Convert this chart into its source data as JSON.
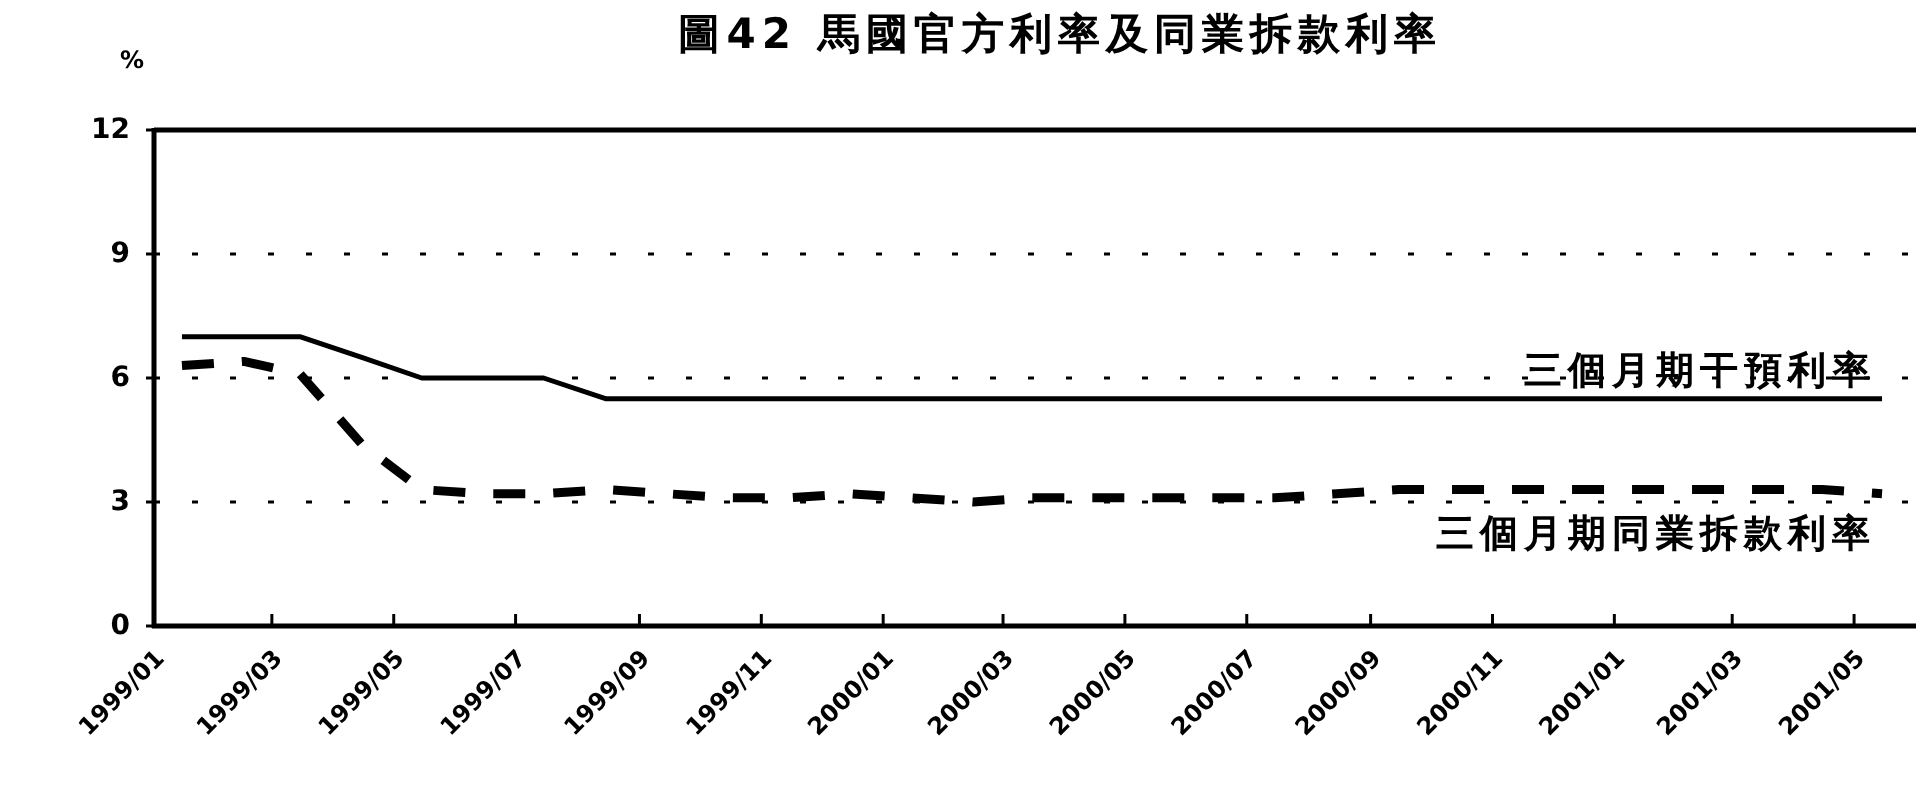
{
  "chart_data": {
    "type": "line",
    "title": "圖42  馬國官方利率及同業拆款利率",
    "ylabel": "%",
    "x": [
      "1999-01-15",
      "1999-02-15",
      "1999-03-15",
      "1999-04-15",
      "1999-05-15",
      "1999-06-15",
      "1999-07-15",
      "1999-08-15",
      "1999-09-15",
      "1999-10-15",
      "1999-11-15",
      "1999-12-15",
      "2000-01-15",
      "2000-02-15",
      "2000-03-15",
      "2000-04-15",
      "2000-05-15",
      "2000-06-15",
      "2000-07-15",
      "2000-08-15",
      "2000-09-15",
      "2000-10-15",
      "2000-11-15",
      "2000-12-15",
      "2001-01-15",
      "2001-02-15",
      "2001-03-15",
      "2001-04-15",
      "2001-05-15"
    ],
    "series": [
      {
        "name": "三個月期干預利率",
        "color": "#000000",
        "line_style": "solid",
        "values": [
          7.0,
          7.0,
          7.0,
          6.5,
          6.0,
          6.0,
          6.0,
          5.5,
          5.5,
          5.5,
          5.5,
          5.5,
          5.5,
          5.5,
          5.5,
          5.5,
          5.5,
          5.5,
          5.5,
          5.5,
          5.5,
          5.5,
          5.5,
          5.5,
          5.5,
          5.5,
          5.5,
          5.5,
          5.5
        ]
      },
      {
        "name": "三個月期同業拆款利率",
        "color": "#000000",
        "line_style": "dashed",
        "values": [
          6.3,
          6.4,
          6.1,
          4.4,
          3.3,
          3.2,
          3.2,
          3.3,
          3.2,
          3.1,
          3.1,
          3.2,
          3.1,
          3.0,
          3.1,
          3.1,
          3.1,
          3.1,
          3.1,
          3.2,
          3.3,
          3.3,
          3.3,
          3.3,
          3.3,
          3.3,
          3.3,
          3.3,
          3.2
        ]
      }
    ],
    "xlim": [
      "1999-01-01",
      "2001-06-01"
    ],
    "xticks": [
      {
        "value": "1999-01",
        "label": "1999/01"
      },
      {
        "value": "1999-03",
        "label": "1999/03"
      },
      {
        "value": "1999-05",
        "label": "1999/05"
      },
      {
        "value": "1999-07",
        "label": "1999/07"
      },
      {
        "value": "1999-09",
        "label": "1999/09"
      },
      {
        "value": "1999-11",
        "label": "1999/11"
      },
      {
        "value": "2000-01",
        "label": "2000/01"
      },
      {
        "value": "2000-03",
        "label": "2000/03"
      },
      {
        "value": "2000-05",
        "label": "2000/05"
      },
      {
        "value": "2000-07",
        "label": "2000/07"
      },
      {
        "value": "2000-09",
        "label": "2000/09"
      },
      {
        "value": "2000-11",
        "label": "2000/11"
      },
      {
        "value": "2001-01",
        "label": "2001/01"
      },
      {
        "value": "2001-03",
        "label": "2001/03"
      },
      {
        "value": "2001-05",
        "label": "2001/05"
      }
    ],
    "ylim": [
      0,
      12
    ],
    "yticks": [
      0,
      3,
      6,
      9,
      12
    ],
    "grid": "y"
  }
}
